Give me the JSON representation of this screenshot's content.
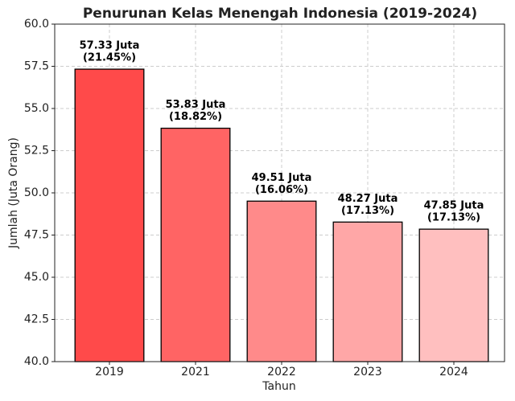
{
  "chart_data": {
    "type": "bar",
    "title": "Penurunan Kelas Menengah Indonesia (2019-2024)",
    "x_label": "Tahun",
    "y_label": "Jumlah (Juta Orang)",
    "categories": [
      "2019",
      "2021",
      "2022",
      "2023",
      "2024"
    ],
    "values": [
      57.33,
      53.83,
      49.51,
      48.27,
      47.85
    ],
    "value_labels": [
      "57.33 Juta",
      "53.83 Juta",
      "49.51 Juta",
      "48.27 Juta",
      "47.85 Juta"
    ],
    "share_labels": [
      "(21.45%)",
      "(18.82%)",
      "(16.06%)",
      "(17.13%)",
      "(17.13%)"
    ],
    "colors": [
      "#ff4a4a",
      "#ff6464",
      "#ff8a8a",
      "#ffa7a7",
      "#ffbfbf"
    ],
    "ylim": [
      40,
      60
    ],
    "yticks": [
      {
        "value": 40,
        "label": "40.0"
      },
      42.5,
      {
        "value": 45,
        "label": "45.0"
      },
      47.5,
      {
        "value": 50,
        "label": "50.0"
      },
      52.5,
      {
        "value": 55,
        "label": "55.0"
      },
      57.5,
      {
        "value": 60,
        "label": "60.0"
      }
    ],
    "grid": true
  }
}
